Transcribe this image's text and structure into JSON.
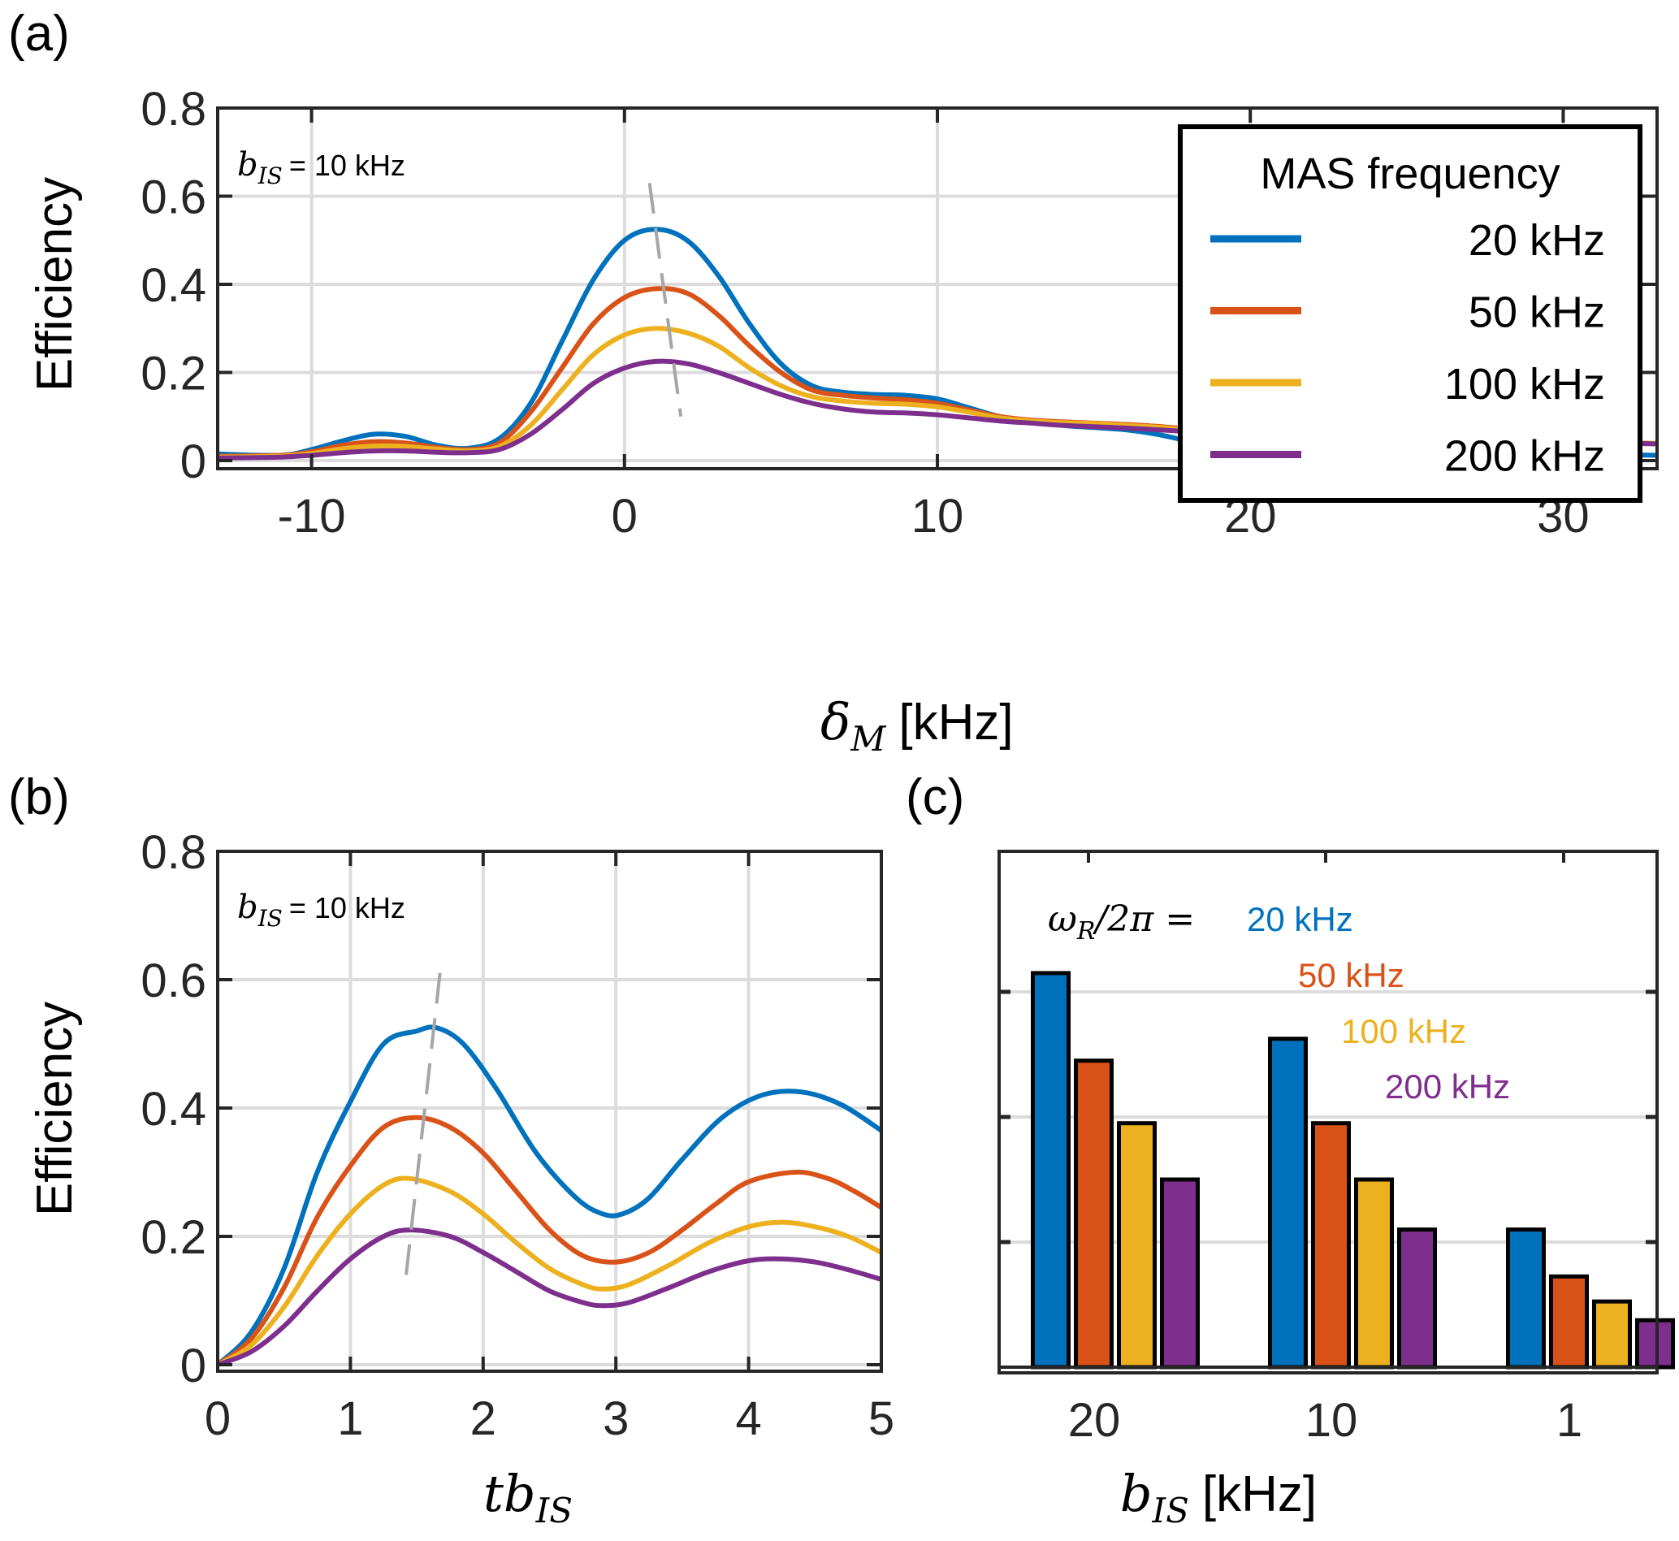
{
  "colors": {
    "s20": "#0072BD",
    "s50": "#D95319",
    "s100": "#EDB120",
    "s200": "#7E2F8E",
    "grid": "#dcdcdc",
    "axis": "#262626",
    "guide": "#a6a6a6"
  },
  "chart_data": [
    {
      "id": "a",
      "panel_label": "(a)",
      "type": "line",
      "title": "",
      "xlabel_symbol": "δ",
      "xlabel_sub": "M",
      "xlabel_unit": "[kHz]",
      "ylabel": "Efficiency",
      "xlim": [
        -13,
        33
      ],
      "ylim": [
        0,
        0.8
      ],
      "xticks": [
        -10,
        0,
        10,
        20,
        30
      ],
      "xtick_labels": [
        "-10",
        "0",
        "10",
        "20",
        "30"
      ],
      "yticks": [
        0,
        0.2,
        0.4,
        0.6,
        0.8
      ],
      "ytick_labels": [
        "0",
        "0.2",
        "0.4",
        "0.6",
        "0.8"
      ],
      "grid": true,
      "annotation": {
        "symbol": "b",
        "sub": "IS",
        "text": "= 10 kHz"
      },
      "legend": {
        "title": "MAS frequency",
        "placement": "top-right",
        "entries": [
          "20 kHz",
          "50 kHz",
          "100 kHz",
          "200 kHz"
        ]
      },
      "guide_line": {
        "style": "dashed",
        "x": [
          0.8,
          1.8
        ],
        "y": [
          0.63,
          0.1
        ]
      },
      "series": [
        {
          "name": "20 kHz",
          "color_key": "s20",
          "x": [
            -13,
            -11,
            -10,
            -9,
            -8,
            -7,
            -6,
            -5,
            -4,
            -3,
            -2,
            -1,
            0,
            1,
            2,
            3,
            4,
            5,
            6,
            7,
            8,
            9,
            10,
            11,
            12,
            13,
            14,
            15,
            16,
            17,
            18,
            19,
            20,
            22,
            24,
            26,
            28,
            30,
            33
          ],
          "y": [
            0.015,
            0.012,
            0.025,
            0.045,
            0.06,
            0.055,
            0.035,
            0.028,
            0.05,
            0.13,
            0.27,
            0.41,
            0.5,
            0.525,
            0.5,
            0.42,
            0.31,
            0.22,
            0.17,
            0.155,
            0.15,
            0.148,
            0.14,
            0.12,
            0.1,
            0.09,
            0.08,
            0.075,
            0.07,
            0.06,
            0.045,
            0.035,
            0.03,
            0.025,
            0.02,
            0.017,
            0.017,
            0.016,
            0.012
          ]
        },
        {
          "name": "50 kHz",
          "color_key": "s50",
          "x": [
            -13,
            -11,
            -10,
            -9,
            -8,
            -7,
            -6,
            -5,
            -4,
            -3,
            -2,
            -1,
            0,
            1,
            2,
            3,
            4,
            5,
            6,
            7,
            8,
            9,
            10,
            11,
            12,
            13,
            14,
            15,
            16,
            17,
            18,
            19,
            20,
            22,
            24,
            26,
            28,
            30,
            33
          ],
          "y": [
            0.01,
            0.012,
            0.02,
            0.035,
            0.043,
            0.04,
            0.03,
            0.025,
            0.04,
            0.11,
            0.21,
            0.31,
            0.37,
            0.39,
            0.38,
            0.33,
            0.26,
            0.2,
            0.16,
            0.148,
            0.142,
            0.138,
            0.13,
            0.115,
            0.1,
            0.092,
            0.088,
            0.085,
            0.082,
            0.078,
            0.072,
            0.066,
            0.062,
            0.058,
            0.054,
            0.05,
            0.046,
            0.043,
            0.038
          ]
        },
        {
          "name": "100 kHz",
          "color_key": "s100",
          "x": [
            -13,
            -11,
            -10,
            -9,
            -8,
            -7,
            -6,
            -5,
            -4,
            -3,
            -2,
            -1,
            0,
            1,
            2,
            3,
            4,
            5,
            6,
            7,
            8,
            9,
            10,
            11,
            12,
            13,
            14,
            15,
            16,
            17,
            18,
            19,
            20,
            22,
            24,
            26,
            28,
            30,
            33
          ],
          "y": [
            0.008,
            0.01,
            0.016,
            0.027,
            0.033,
            0.032,
            0.026,
            0.022,
            0.032,
            0.08,
            0.16,
            0.24,
            0.285,
            0.3,
            0.29,
            0.26,
            0.21,
            0.17,
            0.145,
            0.135,
            0.13,
            0.128,
            0.122,
            0.11,
            0.097,
            0.09,
            0.086,
            0.084,
            0.08,
            0.076,
            0.07,
            0.065,
            0.061,
            0.057,
            0.053,
            0.049,
            0.046,
            0.043,
            0.039
          ]
        },
        {
          "name": "200 kHz",
          "color_key": "s200",
          "x": [
            -13,
            -11,
            -10,
            -9,
            -8,
            -7,
            -6,
            -5,
            -4,
            -3,
            -2,
            -1,
            0,
            1,
            2,
            3,
            4,
            5,
            6,
            7,
            8,
            9,
            10,
            11,
            12,
            13,
            14,
            15,
            16,
            17,
            18,
            19,
            20,
            22,
            24,
            26,
            28,
            30,
            33
          ],
          "y": [
            0.006,
            0.008,
            0.012,
            0.018,
            0.022,
            0.022,
            0.019,
            0.018,
            0.025,
            0.06,
            0.115,
            0.175,
            0.21,
            0.225,
            0.22,
            0.2,
            0.175,
            0.15,
            0.13,
            0.117,
            0.11,
            0.108,
            0.104,
            0.097,
            0.09,
            0.085,
            0.08,
            0.077,
            0.074,
            0.07,
            0.066,
            0.062,
            0.058,
            0.054,
            0.05,
            0.047,
            0.044,
            0.042,
            0.038
          ]
        }
      ]
    },
    {
      "id": "b",
      "panel_label": "(b)",
      "type": "line",
      "xlabel_symbol": "tb",
      "xlabel_sub": "IS",
      "ylabel": "Efficiency",
      "xlim": [
        0,
        5
      ],
      "ylim": [
        0,
        0.8
      ],
      "xticks": [
        0,
        1,
        2,
        3,
        4,
        5
      ],
      "xtick_labels": [
        "0",
        "1",
        "2",
        "3",
        "4",
        "5"
      ],
      "yticks": [
        0,
        0.2,
        0.4,
        0.6,
        0.8
      ],
      "ytick_labels": [
        "0",
        "0.2",
        "0.4",
        "0.6",
        "0.8"
      ],
      "grid": true,
      "annotation": {
        "symbol": "b",
        "sub": "IS",
        "text": "= 10 kHz"
      },
      "guide_line": {
        "style": "dashed",
        "x": [
          1.42,
          1.68
        ],
        "y": [
          0.14,
          0.62
        ]
      },
      "series": [
        {
          "name": "20 kHz",
          "color_key": "s20",
          "x": [
            0,
            0.25,
            0.5,
            0.75,
            1.0,
            1.25,
            1.5,
            1.65,
            1.85,
            2.1,
            2.4,
            2.7,
            2.9,
            3.05,
            3.25,
            3.5,
            3.8,
            4.1,
            4.4,
            4.7,
            5.0
          ],
          "y": [
            0,
            0.05,
            0.15,
            0.3,
            0.41,
            0.5,
            0.52,
            0.525,
            0.5,
            0.43,
            0.33,
            0.26,
            0.235,
            0.235,
            0.26,
            0.32,
            0.385,
            0.42,
            0.425,
            0.405,
            0.365
          ]
        },
        {
          "name": "50 kHz",
          "color_key": "s50",
          "x": [
            0,
            0.25,
            0.5,
            0.75,
            1.0,
            1.25,
            1.5,
            1.75,
            2.0,
            2.25,
            2.5,
            2.75,
            3.0,
            3.25,
            3.5,
            3.75,
            4.0,
            4.35,
            4.6,
            4.8,
            5.0
          ],
          "y": [
            0,
            0.04,
            0.12,
            0.23,
            0.31,
            0.37,
            0.385,
            0.37,
            0.33,
            0.27,
            0.21,
            0.17,
            0.16,
            0.175,
            0.21,
            0.25,
            0.285,
            0.3,
            0.29,
            0.27,
            0.245
          ]
        },
        {
          "name": "100 kHz",
          "color_key": "s100",
          "x": [
            0,
            0.25,
            0.5,
            0.75,
            1.0,
            1.25,
            1.45,
            1.75,
            2.0,
            2.25,
            2.5,
            2.75,
            2.9,
            3.1,
            3.4,
            3.7,
            4.0,
            4.25,
            4.5,
            4.75,
            5.0
          ],
          "y": [
            0,
            0.03,
            0.09,
            0.17,
            0.235,
            0.28,
            0.29,
            0.27,
            0.235,
            0.19,
            0.15,
            0.125,
            0.118,
            0.125,
            0.155,
            0.19,
            0.215,
            0.222,
            0.215,
            0.2,
            0.175
          ]
        },
        {
          "name": "200 kHz",
          "color_key": "s200",
          "x": [
            0,
            0.25,
            0.5,
            0.75,
            1.0,
            1.25,
            1.45,
            1.75,
            2.0,
            2.25,
            2.5,
            2.75,
            2.9,
            3.1,
            3.4,
            3.7,
            4.0,
            4.25,
            4.5,
            4.75,
            5.0
          ],
          "y": [
            0,
            0.02,
            0.06,
            0.115,
            0.165,
            0.2,
            0.21,
            0.2,
            0.175,
            0.145,
            0.115,
            0.097,
            0.092,
            0.097,
            0.12,
            0.145,
            0.162,
            0.165,
            0.16,
            0.148,
            0.133
          ]
        }
      ]
    },
    {
      "id": "c",
      "panel_label": "(c)",
      "type": "bar",
      "xlabel_symbol": "b",
      "xlabel_sub": "IS",
      "xlabel_unit": "[kHz]",
      "ylabel": "",
      "ylim": [
        0,
        0.8
      ],
      "yticks": [
        0,
        0.2,
        0.4,
        0.6,
        0.8
      ],
      "ytick_labels": [],
      "grid": true,
      "categories": [
        "20",
        "10",
        "1"
      ],
      "annotation": {
        "lhs_symbol": "ω",
        "lhs_sub": "R",
        "lhs_rest": "/2π =",
        "labels": [
          "20 kHz",
          "50 kHz",
          "100 kHz",
          "200 kHz"
        ]
      },
      "series": [
        {
          "name": "20 kHz",
          "color_key": "s20",
          "values": [
            0.63,
            0.525,
            0.22
          ]
        },
        {
          "name": "50 kHz",
          "color_key": "s50",
          "values": [
            0.49,
            0.39,
            0.145
          ]
        },
        {
          "name": "100 kHz",
          "color_key": "s100",
          "values": [
            0.39,
            0.3,
            0.105
          ]
        },
        {
          "name": "200 kHz",
          "color_key": "s200",
          "values": [
            0.3,
            0.22,
            0.075
          ]
        }
      ]
    }
  ]
}
